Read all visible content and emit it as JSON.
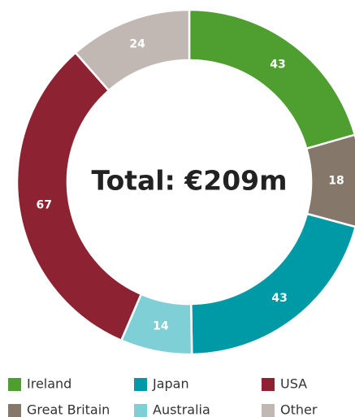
{
  "chart_data": {
    "type": "donut",
    "center_label": "Total: €209m",
    "categories": [
      "Ireland",
      "Great Britain",
      "Japan",
      "Australia",
      "USA",
      "Other"
    ],
    "values": [
      43,
      18,
      43,
      14,
      67,
      24
    ],
    "colors": [
      "#4e9f2f",
      "#85786b",
      "#009aa6",
      "#7ecfd6",
      "#8c2232",
      "#c2b8b3"
    ]
  }
}
